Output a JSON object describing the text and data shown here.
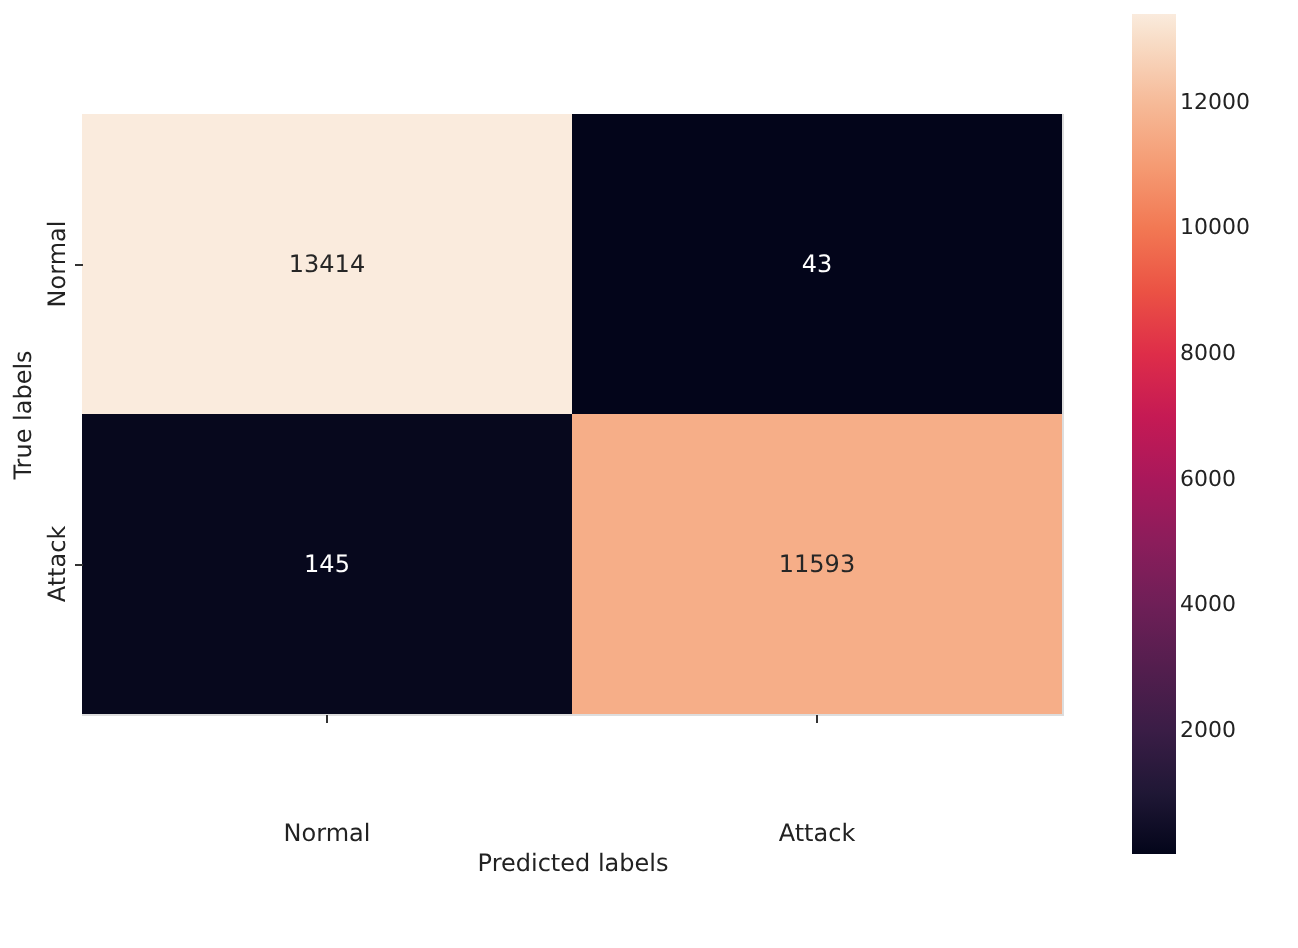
{
  "chart_data": {
    "type": "heatmap",
    "xlabel": "Predicted labels",
    "ylabel": "True labels",
    "categories": [
      "Normal",
      "Attack"
    ],
    "y_categories": [
      "Normal",
      "Attack"
    ],
    "cells": [
      [
        13414,
        43
      ],
      [
        145,
        11593
      ]
    ],
    "data_labels": true,
    "clim": [
      43,
      13414
    ],
    "cticks": [
      2000,
      4000,
      6000,
      8000,
      10000,
      12000
    ]
  }
}
